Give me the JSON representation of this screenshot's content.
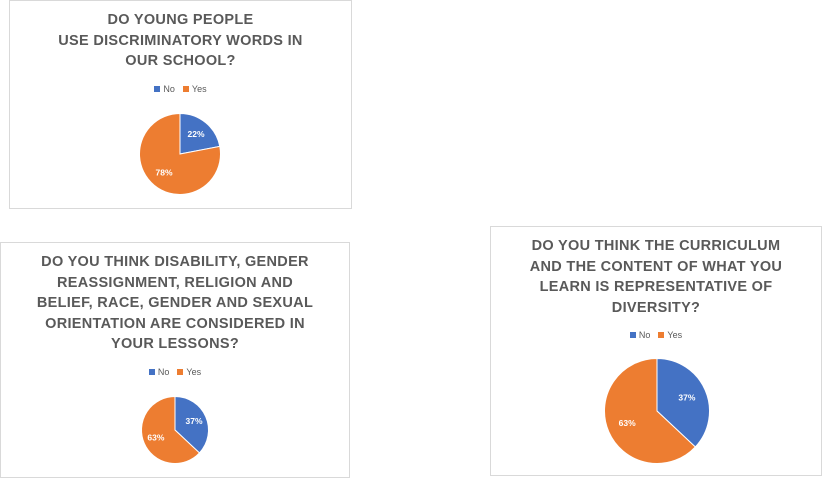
{
  "chart_data": [
    {
      "type": "pie",
      "title_lines": [
        "DO YOUNG PEOPLE",
        "USE DISCRIMINATORY  WORDS IN",
        "OUR SCHOOL?"
      ],
      "categories": [
        "No",
        "Yes"
      ],
      "values": [
        22,
        78
      ],
      "data_labels": [
        "22%",
        "78%"
      ],
      "colors": [
        "#4472c4",
        "#ed7d31"
      ],
      "legend": "top"
    },
    {
      "type": "pie",
      "title_lines": [
        "DO YOU THINK DISABILITY, GENDER",
        "REASSIGNMENT, RELIGION AND",
        "BELIEF, RACE, GENDER AND SEXUAL",
        "ORIENTATION ARE CONSIDERED IN",
        "YOUR LESSONS?"
      ],
      "categories": [
        "No",
        "Yes"
      ],
      "values": [
        37,
        63
      ],
      "data_labels": [
        "37%",
        "63%"
      ],
      "colors": [
        "#4472c4",
        "#ed7d31"
      ],
      "legend": "top"
    },
    {
      "type": "pie",
      "title_lines": [
        "DO YOU THINK THE CURRICULUM",
        "AND THE CONTENT OF WHAT YOU",
        "LEARN IS REPRESENTATIVE OF",
        "DIVERSITY?"
      ],
      "categories": [
        "No",
        "Yes"
      ],
      "values": [
        37,
        63
      ],
      "data_labels": [
        "37%",
        "63%"
      ],
      "colors": [
        "#4472c4",
        "#ed7d31"
      ],
      "legend": "top"
    }
  ]
}
